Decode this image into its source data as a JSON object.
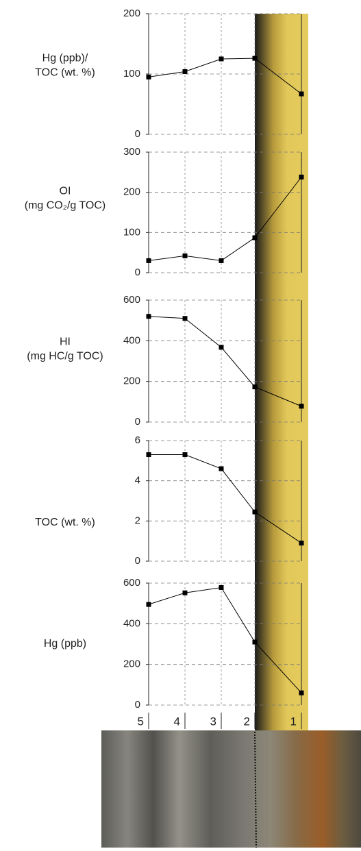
{
  "chart_data": [
    {
      "type": "line",
      "ylabel": [
        "Hg (ppb)/",
        "TOC (wt. %)"
      ],
      "values": [
        95,
        104,
        125,
        126,
        67
      ],
      "color": "#000000",
      "ylim": [
        0,
        200
      ],
      "yticks": [
        0,
        100,
        200
      ],
      "grid": true
    },
    {
      "type": "line",
      "ylabel": [
        "OI",
        "(mg CO₂/g TOC)"
      ],
      "values": [
        30,
        42,
        30,
        87,
        238
      ],
      "color": "#000000",
      "ylim": [
        0,
        300
      ],
      "yticks": [
        0,
        100,
        200,
        300
      ],
      "grid": true
    },
    {
      "type": "line",
      "ylabel": [
        "HI",
        "(mg HC/g TOC)"
      ],
      "values": [
        520,
        510,
        368,
        173,
        78
      ],
      "color": "#000000",
      "ylim": [
        0,
        600
      ],
      "yticks": [
        0,
        200,
        400,
        600
      ],
      "grid": true
    },
    {
      "type": "line",
      "ylabel": [
        "TOC (wt. %)"
      ],
      "values": [
        5.3,
        5.3,
        4.6,
        2.45,
        0.9
      ],
      "color": "#000000",
      "ylim": [
        0,
        6
      ],
      "yticks": [
        0,
        2,
        4,
        6
      ],
      "grid": true
    },
    {
      "type": "line",
      "ylabel": [
        "Hg (ppb)"
      ],
      "categories": [
        "5",
        "4",
        "3",
        "2",
        "1"
      ],
      "values": [
        495,
        552,
        578,
        310,
        60
      ],
      "color": "#000000",
      "ylim": [
        0,
        600
      ],
      "yticks": [
        0,
        200,
        400,
        600
      ],
      "grid": true
    }
  ]
}
